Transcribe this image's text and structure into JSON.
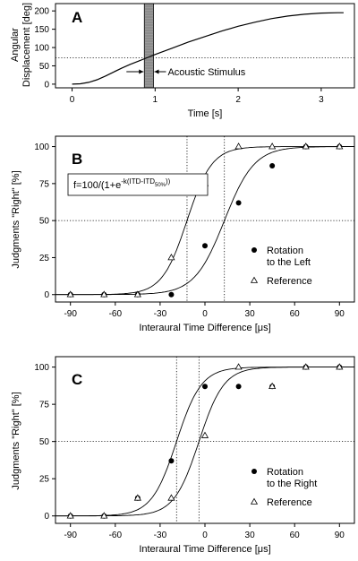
{
  "chart_data": [
    {
      "panel": "A",
      "type": "line",
      "xlabel": "Time [s]",
      "ylabel_lines": [
        "Angular",
        "Displacement [deg]"
      ],
      "xlim": [
        -0.2,
        3.4
      ],
      "ylim": [
        -10,
        220
      ],
      "xticks": [
        0,
        1,
        2,
        3
      ],
      "yticks": [
        0,
        50,
        100,
        150,
        200
      ],
      "x": [
        0,
        0.1,
        0.2,
        0.3,
        0.4,
        0.5,
        0.6,
        0.7,
        0.8,
        0.9,
        1.0,
        1.2,
        1.4,
        1.6,
        1.8,
        2.0,
        2.2,
        2.4,
        2.6,
        2.8,
        3.0,
        3.2,
        3.27
      ],
      "y": [
        0,
        1,
        5,
        12,
        22,
        33,
        44,
        54,
        63,
        72,
        81,
        98,
        115,
        130,
        145,
        158,
        169,
        179,
        186,
        191,
        194,
        195,
        195
      ],
      "hline": 72,
      "stimulus_span": [
        0.87,
        0.98
      ],
      "annotation": "Acoustic Stimulus"
    },
    {
      "panel": "B",
      "type": "scatter",
      "xlabel": "Interaural Time Difference [μs]",
      "ylabel": "Judgments \"Right\" [%]",
      "xlim": [
        -100,
        100
      ],
      "ylim": [
        -5,
        107
      ],
      "xticks": [
        -90,
        -60,
        -30,
        0,
        30,
        60,
        90
      ],
      "yticks": [
        0,
        25,
        50,
        75,
        100
      ],
      "formula": {
        "prefix": "f=100/(1+e",
        "exponent": "-k(ITD-ITD",
        "subscript": "50%",
        "suffix": "))"
      },
      "hline": 50,
      "vlines": [
        -12,
        13
      ],
      "series": [
        {
          "name": "Rotation to the Left",
          "legend_lines": [
            "Rotation",
            "to the Left"
          ],
          "marker": "circle",
          "x": [
            -90,
            -67.5,
            -45,
            -22.5,
            0,
            22.5,
            45,
            67.5,
            90
          ],
          "y": [
            0,
            0,
            0,
            0,
            33,
            62,
            87,
            100,
            100
          ],
          "curve": {
            "midpoint": 13,
            "k": 0.1
          }
        },
        {
          "name": "Reference",
          "legend_lines": [
            "Reference"
          ],
          "marker": "triangle",
          "x": [
            -90,
            -67.5,
            -45,
            -22.5,
            0,
            22.5,
            45,
            67.5,
            90
          ],
          "y": [
            0,
            0,
            0,
            25,
            75,
            100,
            100,
            100,
            100
          ],
          "curve": {
            "midpoint": -12,
            "k": 0.12
          }
        }
      ]
    },
    {
      "panel": "C",
      "type": "scatter",
      "xlabel": "Interaural Time Difference [μs]",
      "ylabel": "Judgments \"Right\" [%]",
      "xlim": [
        -100,
        100
      ],
      "ylim": [
        -5,
        107
      ],
      "xticks": [
        -90,
        -60,
        -30,
        0,
        30,
        60,
        90
      ],
      "yticks": [
        0,
        25,
        50,
        75,
        100
      ],
      "hline": 50,
      "vlines": [
        -19,
        -4
      ],
      "series": [
        {
          "name": "Rotation to the Right",
          "legend_lines": [
            "Rotation",
            "to the Right"
          ],
          "marker": "circle",
          "x": [
            -90,
            -67.5,
            -45,
            -22.5,
            0,
            22.5,
            45,
            67.5,
            90
          ],
          "y": [
            0,
            0,
            12,
            37,
            87,
            87,
            87,
            100,
            100
          ],
          "curve": {
            "midpoint": -19,
            "k": 0.12
          }
        },
        {
          "name": "Reference",
          "legend_lines": [
            "Reference"
          ],
          "marker": "triangle",
          "x": [
            -90,
            -67.5,
            -45,
            -22.5,
            0,
            22.5,
            45,
            67.5,
            90
          ],
          "y": [
            0,
            0,
            12,
            12,
            54,
            100,
            87,
            100,
            100
          ],
          "curve": {
            "midpoint": -4,
            "k": 0.12
          }
        }
      ]
    }
  ]
}
